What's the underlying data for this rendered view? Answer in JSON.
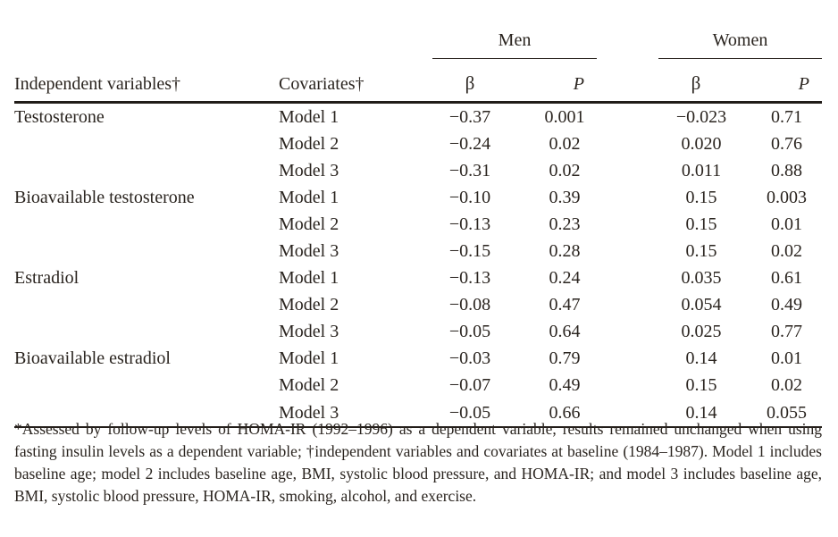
{
  "table": {
    "groups": [
      {
        "label": "Men"
      },
      {
        "label": "Women"
      }
    ],
    "col_headers": {
      "independent": "Independent variables†",
      "covariates": "Covariates†",
      "beta": "β",
      "p": "P"
    },
    "rows": [
      {
        "variable": "Testosterone",
        "model": "Model 1",
        "men_beta": "−0.37",
        "men_p": "0.001",
        "women_beta": "−0.023",
        "women_p": "0.71"
      },
      {
        "variable": "",
        "model": "Model 2",
        "men_beta": "−0.24",
        "men_p": "0.02",
        "women_beta": "0.020",
        "women_p": "0.76"
      },
      {
        "variable": "",
        "model": "Model 3",
        "men_beta": "−0.31",
        "men_p": "0.02",
        "women_beta": "0.011",
        "women_p": "0.88"
      },
      {
        "variable": "Bioavailable testosterone",
        "model": "Model 1",
        "men_beta": "−0.10",
        "men_p": "0.39",
        "women_beta": "0.15",
        "women_p": "0.003"
      },
      {
        "variable": "",
        "model": "Model 2",
        "men_beta": "−0.13",
        "men_p": "0.23",
        "women_beta": "0.15",
        "women_p": "0.01"
      },
      {
        "variable": "",
        "model": "Model 3",
        "men_beta": "−0.15",
        "men_p": "0.28",
        "women_beta": "0.15",
        "women_p": "0.02"
      },
      {
        "variable": "Estradiol",
        "model": "Model 1",
        "men_beta": "−0.13",
        "men_p": "0.24",
        "women_beta": "0.035",
        "women_p": "0.61"
      },
      {
        "variable": "",
        "model": "Model 2",
        "men_beta": "−0.08",
        "men_p": "0.47",
        "women_beta": "0.054",
        "women_p": "0.49"
      },
      {
        "variable": "",
        "model": "Model 3",
        "men_beta": "−0.05",
        "men_p": "0.64",
        "women_beta": "0.025",
        "women_p": "0.77"
      },
      {
        "variable": "Bioavailable estradiol",
        "model": "Model 1",
        "men_beta": "−0.03",
        "men_p": "0.79",
        "women_beta": "0.14",
        "women_p": "0.01"
      },
      {
        "variable": "",
        "model": "Model 2",
        "men_beta": "−0.07",
        "men_p": "0.49",
        "women_beta": "0.15",
        "women_p": "0.02"
      },
      {
        "variable": "",
        "model": "Model 3",
        "men_beta": "−0.05",
        "men_p": "0.66",
        "women_beta": "0.14",
        "women_p": "0.055"
      }
    ]
  },
  "footnote": "*Assessed by follow-up levels of HOMA-IR (1992–1996) as a dependent variable, results remained unchanged when using fasting insulin levels as a dependent variable; †independent variables and covariates at baseline (1984–1987). Model 1 includes baseline age; model 2 includes baseline age, BMI, systolic blood pressure, and HOMA-IR; and model 3 includes baseline age, BMI, systolic blood pressure, HOMA-IR, smoking, alcohol, and exercise.",
  "colors": {
    "text": "#2a241f",
    "rule": "#211c18",
    "background": "#ffffff"
  }
}
